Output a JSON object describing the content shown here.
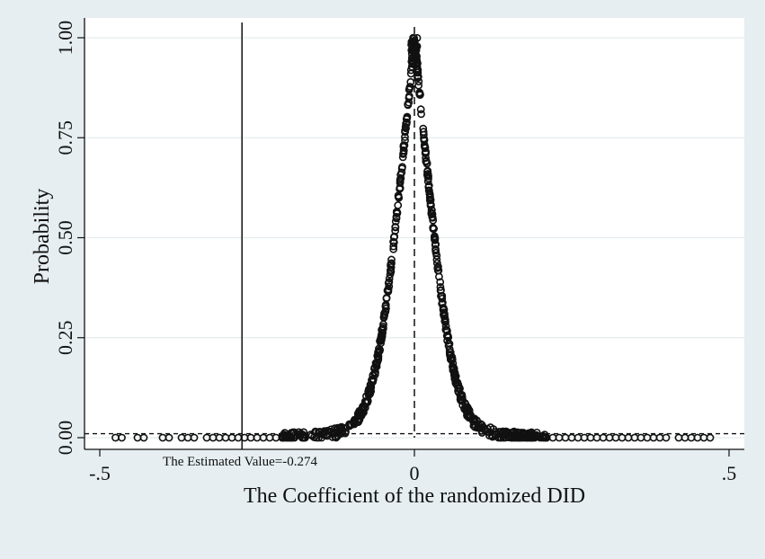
{
  "chart_data": {
    "type": "scatter",
    "title": "",
    "xlabel": "The Coefficient of the randomized DID",
    "ylabel": "Probability",
    "xlim": [
      -0.52,
      0.52
    ],
    "ylim": [
      0,
      1.0
    ],
    "x_ticks": [
      -0.5,
      0,
      0.5
    ],
    "x_tick_labels": [
      "-.5",
      "0",
      ".5"
    ],
    "y_ticks": [
      0,
      0.25,
      0.5,
      0.75,
      1.0
    ],
    "y_tick_labels": [
      "0.00",
      "0.25",
      "0.50",
      "0.75",
      "1.00"
    ],
    "grid": true,
    "legend": "none",
    "reference_lines": {
      "estimated_value_x": -0.274,
      "zero_x": 0,
      "significance_y": 0.01
    },
    "annotation": "The Estimated Value=-0.274",
    "series": [
      {
        "marker": "hollow-circle",
        "x_range": [
          -0.475,
          0.47
        ],
        "distribution": "bell-shaped, peak 1.00 at x=0, falls to ~0 beyond |x|=0.18",
        "sample_points": [
          {
            "x": -0.45,
            "y": 0.0
          },
          {
            "x": -0.4,
            "y": 0.0
          },
          {
            "x": -0.3,
            "y": 0.0
          },
          {
            "x": -0.2,
            "y": 0.0
          },
          {
            "x": -0.15,
            "y": 0.01
          },
          {
            "x": -0.12,
            "y": 0.03
          },
          {
            "x": -0.1,
            "y": 0.06
          },
          {
            "x": -0.08,
            "y": 0.13
          },
          {
            "x": -0.06,
            "y": 0.27
          },
          {
            "x": -0.04,
            "y": 0.47
          },
          {
            "x": -0.02,
            "y": 0.75
          },
          {
            "x": 0.0,
            "y": 1.0
          },
          {
            "x": 0.02,
            "y": 0.76
          },
          {
            "x": 0.04,
            "y": 0.48
          },
          {
            "x": 0.06,
            "y": 0.27
          },
          {
            "x": 0.08,
            "y": 0.13
          },
          {
            "x": 0.1,
            "y": 0.06
          },
          {
            "x": 0.12,
            "y": 0.03
          },
          {
            "x": 0.15,
            "y": 0.01
          },
          {
            "x": 0.2,
            "y": 0.0
          },
          {
            "x": 0.3,
            "y": 0.0
          },
          {
            "x": 0.4,
            "y": 0.0
          },
          {
            "x": 0.45,
            "y": 0.0
          }
        ]
      }
    ]
  }
}
